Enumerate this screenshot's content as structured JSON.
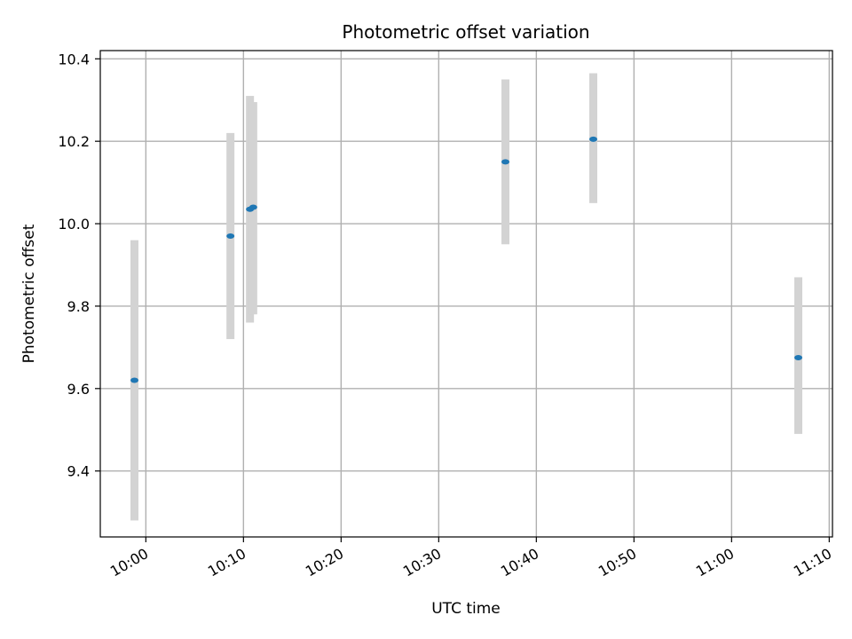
{
  "chart_data": {
    "type": "scatter",
    "title": "Photometric offset variation",
    "xlabel": "UTC time",
    "ylabel": "Photometric offset",
    "x_ticks": [
      "10:00",
      "10:10",
      "10:20",
      "10:30",
      "10:40",
      "10:50",
      "11:00",
      "11:10"
    ],
    "y_ticks": [
      "9.4",
      "9.6",
      "9.8",
      "10.0",
      "10.2",
      "10.4"
    ],
    "xlim": [
      "09:55:20",
      "11:10:20"
    ],
    "ylim": [
      9.24,
      10.42
    ],
    "grid": true,
    "series": [
      {
        "x": [
          "09:58:50",
          "10:08:40",
          "10:10:40",
          "10:11:00",
          "10:36:50",
          "10:45:50",
          "11:06:50"
        ],
        "y": [
          9.62,
          9.97,
          10.035,
          10.04,
          10.15,
          10.205,
          9.675
        ],
        "error_low": [
          9.28,
          9.72,
          9.76,
          9.78,
          9.95,
          10.05,
          9.49
        ],
        "error_high": [
          9.96,
          10.22,
          10.31,
          10.295,
          10.35,
          10.365,
          9.87
        ]
      }
    ],
    "colors": {
      "point": "#1f77b4",
      "errorbar": "#d3d3d3",
      "grid": "#b0b0b0",
      "axes": "#000000"
    }
  }
}
